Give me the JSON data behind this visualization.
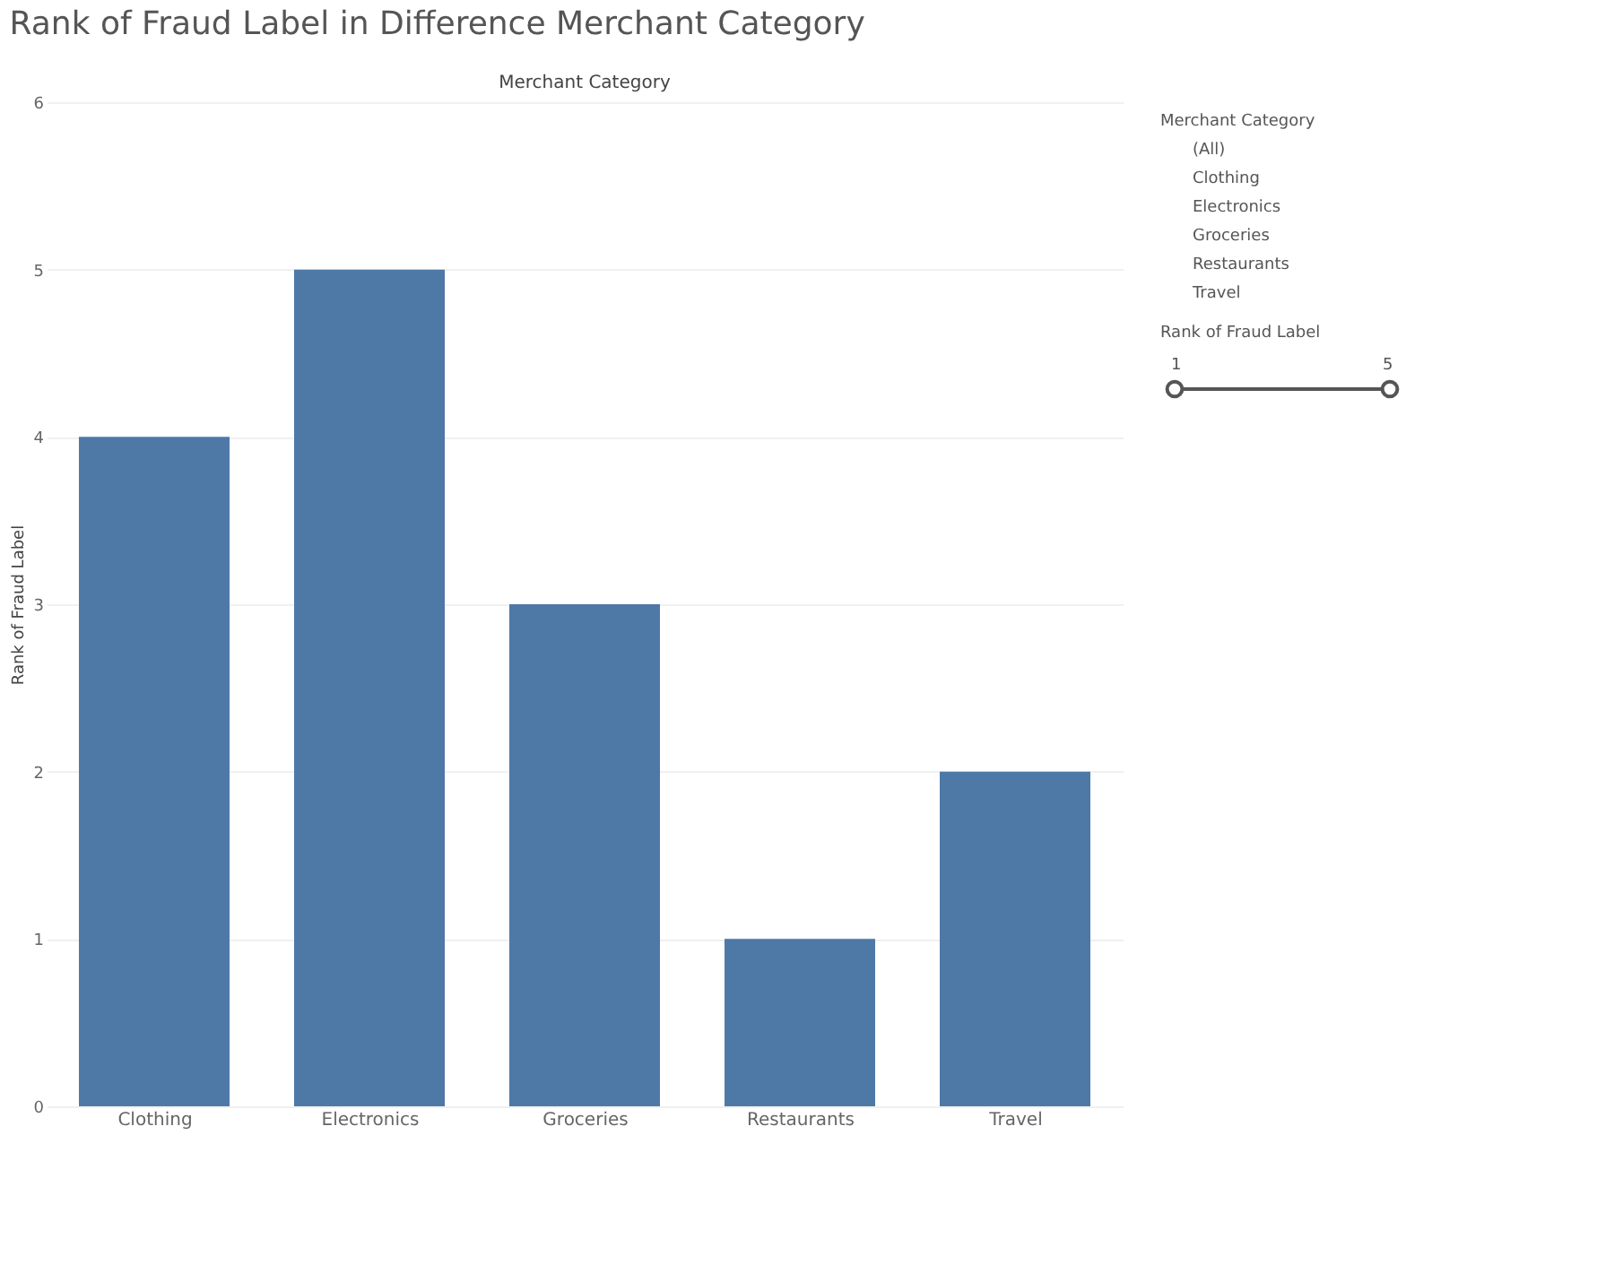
{
  "chart_data": {
    "type": "bar",
    "title": "Rank of Fraud Label in Difference Merchant Category",
    "xlabel": "Merchant Category",
    "ylabel": "Rank of Fraud Label",
    "categories": [
      "Clothing",
      "Electronics",
      "Groceries",
      "Restaurants",
      "Travel"
    ],
    "values": [
      4,
      5,
      3,
      1,
      2
    ],
    "color": "#4e79a7",
    "ylim": [
      0,
      6
    ],
    "yticks": [
      0,
      1,
      2,
      3,
      4,
      5,
      6
    ],
    "grid": "y",
    "annotations": [
      "Merchant Category",
      "(All)",
      "Clothing",
      "Electronics",
      "Groceries",
      "Restaurants",
      "Travel",
      "Rank of Fraud Label",
      "1",
      "5"
    ]
  }
}
